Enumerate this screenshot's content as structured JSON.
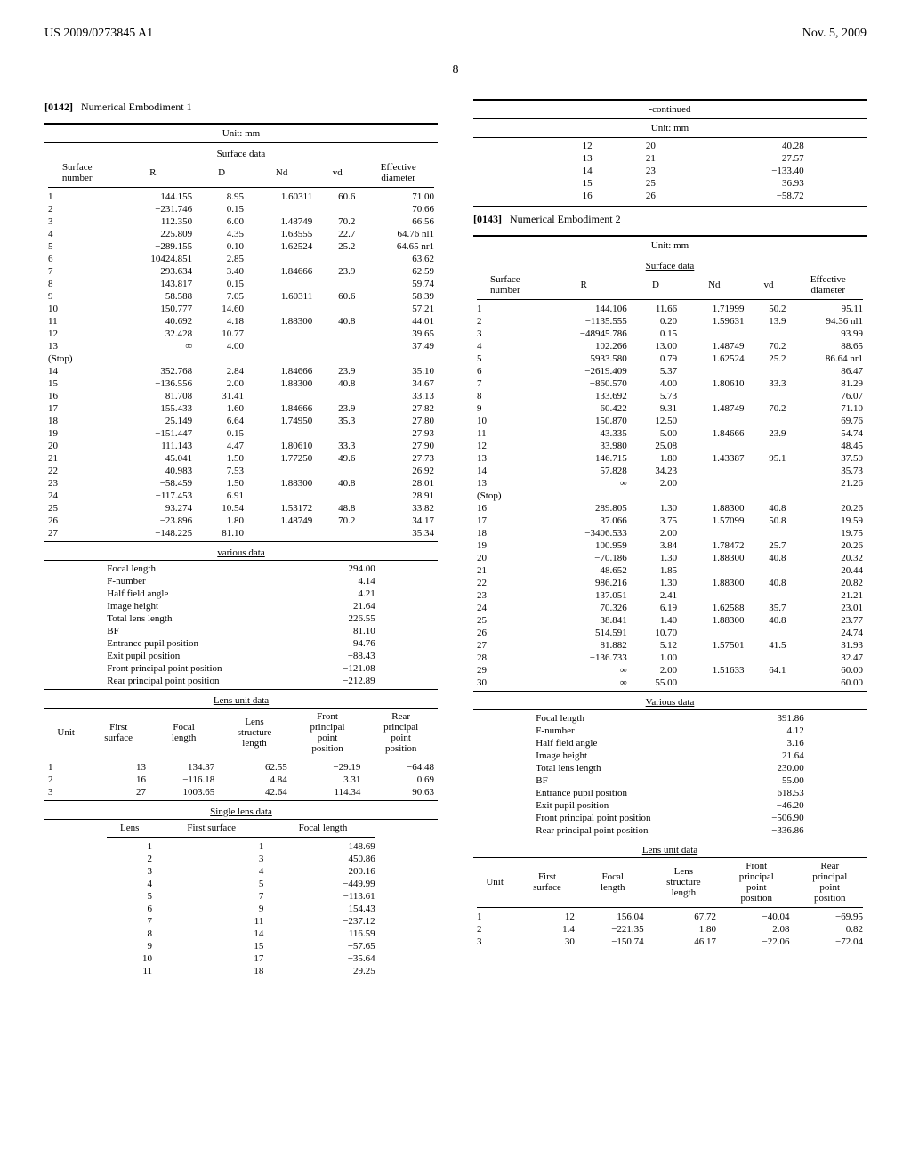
{
  "header": {
    "left": "US 2009/0273845 A1",
    "right": "Nov. 5, 2009"
  },
  "page_number": "8",
  "para1": {
    "num": "[0142]",
    "text": "Numerical Embodiment 1"
  },
  "para2": {
    "num": "[0143]",
    "text": "Numerical Embodiment 2"
  },
  "unit": "Unit: mm",
  "surf_hdr": [
    "Surface\nnumber",
    "R",
    "D",
    "Nd",
    "vd",
    "Effective\ndiameter"
  ],
  "sec": {
    "surface": "Surface data",
    "various": "various data",
    "lens": "Lens unit data",
    "single": "Single lens data",
    "cont": "-continued",
    "variousC": "Various data"
  },
  "e1": {
    "surface": [
      [
        "1",
        "144.155",
        "8.95",
        "1.60311",
        "60.6",
        "71.00"
      ],
      [
        "2",
        "−231.746",
        "0.15",
        "",
        "",
        "70.66"
      ],
      [
        "3",
        "112.350",
        "6.00",
        "1.48749",
        "70.2",
        "66.56"
      ],
      [
        "4",
        "225.809",
        "4.35",
        "1.63555",
        "22.7",
        "64.76 nl1"
      ],
      [
        "5",
        "−289.155",
        "0.10",
        "1.62524",
        "25.2",
        "64.65 nr1"
      ],
      [
        "6",
        "10424.851",
        "2.85",
        "",
        "",
        "63.62"
      ],
      [
        "7",
        "−293.634",
        "3.40",
        "1.84666",
        "23.9",
        "62.59"
      ],
      [
        "8",
        "143.817",
        "0.15",
        "",
        "",
        "59.74"
      ],
      [
        "9",
        "58.588",
        "7.05",
        "1.60311",
        "60.6",
        "58.39"
      ],
      [
        "10",
        "150.777",
        "14.60",
        "",
        "",
        "57.21"
      ],
      [
        "11",
        "40.692",
        "4.18",
        "1.88300",
        "40.8",
        "44.01"
      ],
      [
        "12",
        "32.428",
        "10.77",
        "",
        "",
        "39.65"
      ],
      [
        "13",
        "∞",
        "4.00",
        "",
        "",
        "37.49"
      ],
      [
        "(Stop)",
        "",
        "",
        "",
        "",
        ""
      ],
      [
        "14",
        "352.768",
        "2.84",
        "1.84666",
        "23.9",
        "35.10"
      ],
      [
        "15",
        "−136.556",
        "2.00",
        "1.88300",
        "40.8",
        "34.67"
      ],
      [
        "16",
        "81.708",
        "31.41",
        "",
        "",
        "33.13"
      ],
      [
        "17",
        "155.433",
        "1.60",
        "1.84666",
        "23.9",
        "27.82"
      ],
      [
        "18",
        "25.149",
        "6.64",
        "1.74950",
        "35.3",
        "27.80"
      ],
      [
        "19",
        "−151.447",
        "0.15",
        "",
        "",
        "27.93"
      ],
      [
        "20",
        "111.143",
        "4.47",
        "1.80610",
        "33.3",
        "27.90"
      ],
      [
        "21",
        "−45.041",
        "1.50",
        "1.77250",
        "49.6",
        "27.73"
      ],
      [
        "22",
        "40.983",
        "7.53",
        "",
        "",
        "26.92"
      ],
      [
        "23",
        "−58.459",
        "1.50",
        "1.88300",
        "40.8",
        "28.01"
      ],
      [
        "24",
        "−117.453",
        "6.91",
        "",
        "",
        "28.91"
      ],
      [
        "25",
        "93.274",
        "10.54",
        "1.53172",
        "48.8",
        "33.82"
      ],
      [
        "26",
        "−23.896",
        "1.80",
        "1.48749",
        "70.2",
        "34.17"
      ],
      [
        "27",
        "−148.225",
        "81.10",
        "",
        "",
        "35.34"
      ]
    ],
    "various": [
      [
        "Focal length",
        "294.00"
      ],
      [
        "F-number",
        "4.14"
      ],
      [
        "Half field angle",
        "4.21"
      ],
      [
        "Image height",
        "21.64"
      ],
      [
        "Total lens length",
        "226.55"
      ],
      [
        "BF",
        "81.10"
      ],
      [
        "Entrance pupil position",
        "94.76"
      ],
      [
        "Exit pupil position",
        "−88.43"
      ],
      [
        "Front principal point position",
        "−121.08"
      ],
      [
        "Rear principal point position",
        "−212.89"
      ]
    ],
    "lens_hdr": [
      "Unit",
      "First\nsurface",
      "Focal\nlength",
      "Lens\nstructure\nlength",
      "Front\nprincipal\npoint\nposition",
      "Rear\nprincipal\npoint\nposition"
    ],
    "lens": [
      [
        "1",
        "13",
        "134.37",
        "62.55",
        "−29.19",
        "−64.48"
      ],
      [
        "2",
        "16",
        "−116.18",
        "4.84",
        "3.31",
        "0.69"
      ],
      [
        "3",
        "27",
        "1003.65",
        "42.64",
        "114.34",
        "90.63"
      ]
    ],
    "single_hdr": [
      "Lens",
      "First surface",
      "Focal length"
    ],
    "single": [
      [
        "1",
        "1",
        "148.69"
      ],
      [
        "2",
        "3",
        "450.86"
      ],
      [
        "3",
        "4",
        "200.16"
      ],
      [
        "4",
        "5",
        "−449.99"
      ],
      [
        "5",
        "7",
        "−113.61"
      ],
      [
        "6",
        "9",
        "154.43"
      ],
      [
        "7",
        "11",
        "−237.12"
      ],
      [
        "8",
        "14",
        "116.59"
      ],
      [
        "9",
        "15",
        "−57.65"
      ],
      [
        "10",
        "17",
        "−35.64"
      ],
      [
        "11",
        "18",
        "29.25"
      ]
    ],
    "single_cont": [
      [
        "12",
        "20",
        "40.28"
      ],
      [
        "13",
        "21",
        "−27.57"
      ],
      [
        "14",
        "23",
        "−133.40"
      ],
      [
        "15",
        "25",
        "36.93"
      ],
      [
        "16",
        "26",
        "−58.72"
      ]
    ]
  },
  "e2": {
    "surface": [
      [
        "1",
        "144.106",
        "11.66",
        "1.71999",
        "50.2",
        "95.11"
      ],
      [
        "2",
        "−1135.555",
        "0.20",
        "1.59631",
        "13.9",
        "94.36 nl1"
      ],
      [
        "3",
        "−48945.786",
        "0.15",
        "",
        "",
        "93.99"
      ],
      [
        "4",
        "102.266",
        "13.00",
        "1.48749",
        "70.2",
        "88.65"
      ],
      [
        "5",
        "5933.580",
        "0.79",
        "1.62524",
        "25.2",
        "86.64 nr1"
      ],
      [
        "6",
        "−2619.409",
        "5.37",
        "",
        "",
        "86.47"
      ],
      [
        "7",
        "−860.570",
        "4.00",
        "1.80610",
        "33.3",
        "81.29"
      ],
      [
        "8",
        "133.692",
        "5.73",
        "",
        "",
        "76.07"
      ],
      [
        "9",
        "60.422",
        "9.31",
        "1.48749",
        "70.2",
        "71.10"
      ],
      [
        "10",
        "150.870",
        "12.50",
        "",
        "",
        "69.76"
      ],
      [
        "11",
        "43.335",
        "5.00",
        "1.84666",
        "23.9",
        "54.74"
      ],
      [
        "12",
        "33.980",
        "25.08",
        "",
        "",
        "48.45"
      ],
      [
        "13",
        "146.715",
        "1.80",
        "1.43387",
        "95.1",
        "37.50"
      ],
      [
        "14",
        "57.828",
        "34.23",
        "",
        "",
        "35.73"
      ],
      [
        "13",
        "∞",
        "2.00",
        "",
        "",
        "21.26"
      ],
      [
        "(Stop)",
        "",
        "",
        "",
        "",
        ""
      ],
      [
        "16",
        "289.805",
        "1.30",
        "1.88300",
        "40.8",
        "20.26"
      ],
      [
        "17",
        "37.066",
        "3.75",
        "1.57099",
        "50.8",
        "19.59"
      ],
      [
        "18",
        "−3406.533",
        "2.00",
        "",
        "",
        "19.75"
      ],
      [
        "19",
        "100.959",
        "3.84",
        "1.78472",
        "25.7",
        "20.26"
      ],
      [
        "20",
        "−70.186",
        "1.30",
        "1.88300",
        "40.8",
        "20.32"
      ],
      [
        "21",
        "48.652",
        "1.85",
        "",
        "",
        "20.44"
      ],
      [
        "22",
        "986.216",
        "1.30",
        "1.88300",
        "40.8",
        "20.82"
      ],
      [
        "23",
        "137.051",
        "2.41",
        "",
        "",
        "21.21"
      ],
      [
        "24",
        "70.326",
        "6.19",
        "1.62588",
        "35.7",
        "23.01"
      ],
      [
        "25",
        "−38.841",
        "1.40",
        "1.88300",
        "40.8",
        "23.77"
      ],
      [
        "26",
        "514.591",
        "10.70",
        "",
        "",
        "24.74"
      ],
      [
        "27",
        "81.882",
        "5.12",
        "1.57501",
        "41.5",
        "31.93"
      ],
      [
        "28",
        "−136.733",
        "1.00",
        "",
        "",
        "32.47"
      ],
      [
        "29",
        "∞",
        "2.00",
        "1.51633",
        "64.1",
        "60.00"
      ],
      [
        "30",
        "∞",
        "55.00",
        "",
        "",
        "60.00"
      ]
    ],
    "various": [
      [
        "Focal length",
        "391.86"
      ],
      [
        "F-number",
        "4.12"
      ],
      [
        "Half field angle",
        "3.16"
      ],
      [
        "Image height",
        "21.64"
      ],
      [
        "Total lens length",
        "230.00"
      ],
      [
        "BF",
        "55.00"
      ],
      [
        "Entrance pupil position",
        "618.53"
      ],
      [
        "Exit pupil position",
        "−46.20"
      ],
      [
        "Front principal point position",
        "−506.90"
      ],
      [
        "Rear principal point position",
        "−336.86"
      ]
    ],
    "lens": [
      [
        "1",
        "12",
        "156.04",
        "67.72",
        "−40.04",
        "−69.95"
      ],
      [
        "2",
        "1.4",
        "−221.35",
        "1.80",
        "2.08",
        "0.82"
      ],
      [
        "3",
        "30",
        "−150.74",
        "46.17",
        "−22.06",
        "−72.04"
      ]
    ]
  }
}
